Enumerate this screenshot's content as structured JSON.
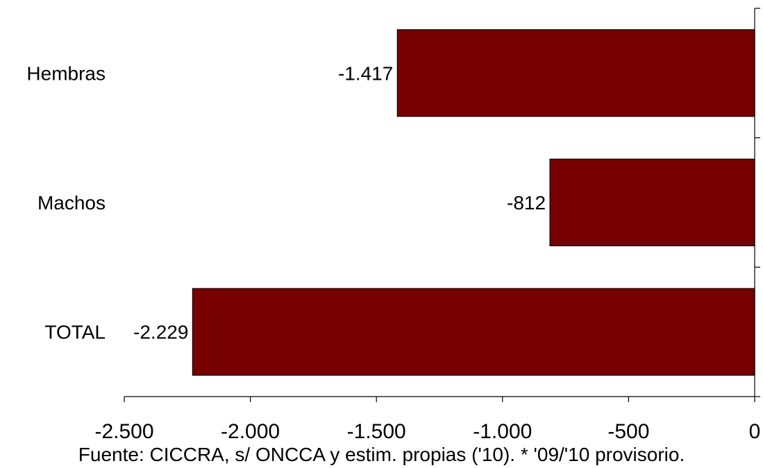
{
  "chart_data": {
    "type": "bar",
    "orientation": "horizontal",
    "categories": [
      "Hembras",
      "Machos",
      "TOTAL"
    ],
    "values": [
      -1417,
      -812,
      -2229
    ],
    "data_labels": [
      "-1.417",
      "-812",
      "-2.229"
    ],
    "xlim": [
      -2500,
      0
    ],
    "xticks": [
      -2500,
      -2000,
      -1500,
      -1000,
      -500,
      0
    ],
    "xtick_labels": [
      "-2.500",
      "-2.000",
      "-1.500",
      "-1.000",
      "-500",
      "0"
    ],
    "bar_color": "#770000",
    "grid": false,
    "legend": "none"
  },
  "footnote": "Fuente: CICCRA, s/ ONCCA y estim. propias ('10). * '09/'10 provisorio."
}
